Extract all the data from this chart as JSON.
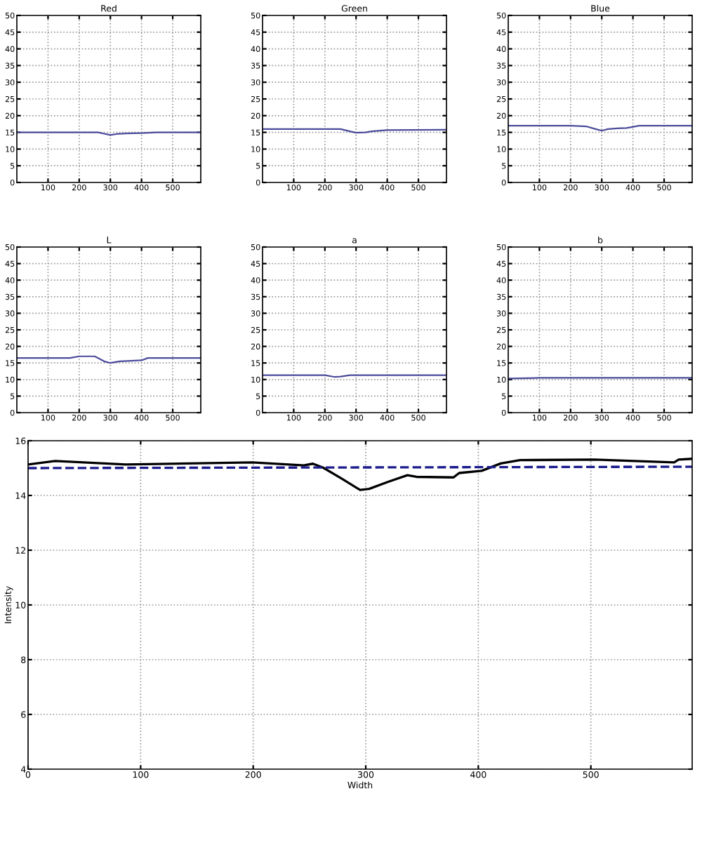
{
  "chart_data": [
    {
      "type": "line",
      "title": "Red",
      "xlim": [
        0,
        590
      ],
      "xticks": [
        100,
        200,
        300,
        400,
        500
      ],
      "ylim": [
        0,
        50
      ],
      "yticks": [
        0,
        5,
        10,
        15,
        20,
        25,
        30,
        35,
        40,
        45,
        50
      ],
      "grid": true,
      "series": [
        {
          "color": "#4b4b9b",
          "x": [
            0,
            100,
            200,
            260,
            280,
            300,
            320,
            350,
            400,
            450,
            590
          ],
          "values": [
            15,
            15,
            15,
            15,
            14.6,
            14.2,
            14.5,
            14.7,
            14.8,
            15,
            15
          ]
        }
      ]
    },
    {
      "type": "line",
      "title": "Green",
      "xlim": [
        0,
        590
      ],
      "xticks": [
        100,
        200,
        300,
        400,
        500
      ],
      "ylim": [
        0,
        50
      ],
      "yticks": [
        0,
        5,
        10,
        15,
        20,
        25,
        30,
        35,
        40,
        45,
        50
      ],
      "grid": true,
      "series": [
        {
          "color": "#4b4b9b",
          "x": [
            0,
            200,
            250,
            280,
            300,
            330,
            350,
            400,
            590
          ],
          "values": [
            16,
            16,
            16,
            15.3,
            14.9,
            15,
            15.3,
            15.7,
            15.8
          ]
        }
      ]
    },
    {
      "type": "line",
      "title": "Blue",
      "xlim": [
        0,
        590
      ],
      "xticks": [
        100,
        200,
        300,
        400,
        500
      ],
      "ylim": [
        0,
        50
      ],
      "yticks": [
        0,
        5,
        10,
        15,
        20,
        25,
        30,
        35,
        40,
        45,
        50
      ],
      "grid": true,
      "series": [
        {
          "color": "#4b4b9b",
          "x": [
            0,
            200,
            250,
            280,
            300,
            320,
            350,
            380,
            420,
            590
          ],
          "values": [
            17,
            17,
            16.8,
            16,
            15.5,
            16,
            16.2,
            16.3,
            17,
            17
          ]
        }
      ]
    },
    {
      "type": "line",
      "title": "L",
      "xlim": [
        0,
        590
      ],
      "xticks": [
        100,
        200,
        300,
        400,
        500
      ],
      "ylim": [
        0,
        50
      ],
      "yticks": [
        0,
        5,
        10,
        15,
        20,
        25,
        30,
        35,
        40,
        45,
        50
      ],
      "grid": true,
      "series": [
        {
          "color": "#4b4b9b",
          "x": [
            0,
            170,
            200,
            250,
            280,
            300,
            330,
            400,
            420,
            590
          ],
          "values": [
            16.5,
            16.5,
            17,
            17,
            15.5,
            15,
            15.5,
            15.8,
            16.5,
            16.5
          ]
        }
      ]
    },
    {
      "type": "line",
      "title": "a",
      "xlim": [
        0,
        590
      ],
      "xticks": [
        100,
        200,
        300,
        400,
        500
      ],
      "ylim": [
        0,
        50
      ],
      "yticks": [
        0,
        5,
        10,
        15,
        20,
        25,
        30,
        35,
        40,
        45,
        50
      ],
      "grid": true,
      "series": [
        {
          "color": "#4b4b9b",
          "x": [
            0,
            200,
            230,
            250,
            280,
            590
          ],
          "values": [
            11.3,
            11.3,
            10.8,
            10.9,
            11.3,
            11.3
          ]
        }
      ]
    },
    {
      "type": "line",
      "title": "b",
      "xlim": [
        0,
        590
      ],
      "xticks": [
        100,
        200,
        300,
        400,
        500
      ],
      "ylim": [
        0,
        50
      ],
      "yticks": [
        0,
        5,
        10,
        15,
        20,
        25,
        30,
        35,
        40,
        45,
        50
      ],
      "grid": true,
      "series": [
        {
          "color": "#4b4b9b",
          "x": [
            0,
            100,
            200,
            590
          ],
          "values": [
            10.3,
            10.5,
            10.5,
            10.5
          ]
        }
      ]
    },
    {
      "type": "line",
      "xlabel": "Width",
      "ylabel": "Intensity",
      "xlim": [
        0,
        590
      ],
      "xticks": [
        0,
        100,
        200,
        300,
        400,
        500
      ],
      "ylim": [
        4,
        16
      ],
      "yticks": [
        4,
        6,
        8,
        10,
        12,
        14,
        16
      ],
      "grid": true,
      "series": [
        {
          "color": "#000000",
          "line_style": "solid",
          "x": [
            0,
            24,
            87,
            199,
            245,
            253,
            262,
            278,
            295,
            303,
            320,
            337,
            345,
            378,
            383,
            403,
            420,
            437,
            503,
            574,
            578,
            590
          ],
          "values": [
            15.13,
            15.26,
            15.13,
            15.21,
            15.1,
            15.16,
            15.02,
            14.63,
            14.2,
            14.24,
            14.5,
            14.74,
            14.68,
            14.66,
            14.82,
            14.9,
            15.17,
            15.29,
            15.31,
            15.21,
            15.31,
            15.34
          ]
        },
        {
          "color": "#1a1a8c",
          "line_style": "dashed",
          "x": [
            0,
            590
          ],
          "values": [
            15.0,
            15.05
          ]
        }
      ]
    }
  ]
}
